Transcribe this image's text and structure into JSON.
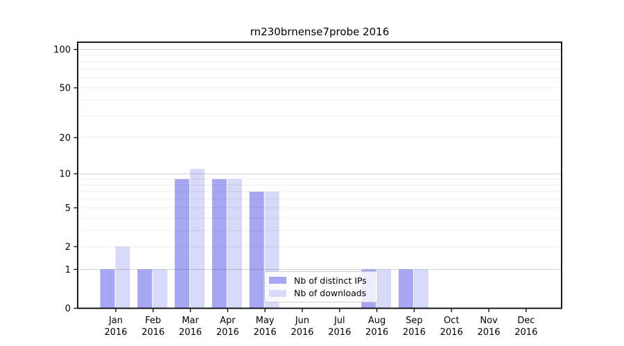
{
  "title": "rn230brnense7probe 2016",
  "legend": {
    "items": [
      {
        "label": "Nb of distinct IPs",
        "color": "#a6a6f2"
      },
      {
        "label": "Nb of downloads",
        "color": "#d8d8f8"
      }
    ]
  },
  "colors": {
    "series_dark": "#a6a6f2",
    "series_light": "#d8d8f8",
    "axis": "#000000",
    "grid_minor": "#ededed",
    "grid_major": "#c9c9c9",
    "legend_border": "#cccccc"
  },
  "chart_data": {
    "type": "bar",
    "title": "rn230brnense7probe 2016",
    "categories": [
      "Jan",
      "Feb",
      "Mar",
      "Apr",
      "May",
      "Jun",
      "Jul",
      "Aug",
      "Sep",
      "Oct",
      "Nov",
      "Dec"
    ],
    "year_label": "2016",
    "series": [
      {
        "name": "Nb of distinct IPs",
        "color": "#a6a6f2",
        "values": [
          1,
          1,
          9,
          9,
          7,
          0,
          0,
          1,
          1,
          0,
          0,
          0
        ]
      },
      {
        "name": "Nb of downloads",
        "color": "#d8d8f8",
        "values": [
          2,
          1,
          11,
          9,
          7,
          0,
          0,
          1,
          1,
          0,
          0,
          0
        ]
      }
    ],
    "xlabel": "",
    "ylabel": "",
    "yscale": "log1p",
    "ylim": [
      0,
      113
    ],
    "ytick_values": [
      0,
      1,
      2,
      5,
      10,
      20,
      50,
      100
    ],
    "major_gridline_values": [
      1,
      10,
      100
    ],
    "minor_gridline_values": [
      2,
      3,
      4,
      5,
      6,
      7,
      8,
      9,
      20,
      30,
      40,
      50,
      60,
      70,
      80,
      90
    ],
    "grid": true,
    "legend_position": "inside lower center"
  }
}
